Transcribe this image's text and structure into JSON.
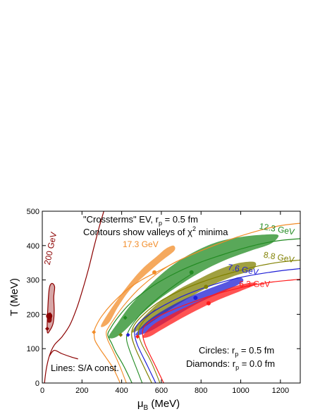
{
  "chart_data": {
    "type": "line",
    "xlabel": "μB (MeV)",
    "ylabel": "T (MeV)",
    "xlim": [
      0,
      1300
    ],
    "ylim": [
      0,
      500
    ],
    "xticks": [
      0,
      200,
      400,
      600,
      800,
      1000,
      1200
    ],
    "yticks": [
      0,
      100,
      200,
      300,
      400,
      500
    ],
    "annotations": {
      "line1": "\"Crossterms\" EV, r",
      "line1_sub": "p",
      "line1_tail": " = 0.5 fm",
      "line2": "Contours show valleys of χ",
      "line2_sup": "2",
      "line2_tail": " minima",
      "lines_note": "Lines: S/A const.",
      "circles_label": "Circles: r",
      "circles_sub": "p",
      "circles_tail": " = 0.5 fm",
      "diamonds_label": "Diamonds: r",
      "diamonds_sub": "p",
      "diamonds_tail": " = 0.0 fm"
    },
    "series": [
      {
        "name": "200 GeV",
        "color": "#8b0000",
        "line": [
          [
            10,
            -10
          ],
          [
            12,
            5
          ],
          [
            20,
            40
          ],
          [
            35,
            78
          ],
          [
            60,
            110
          ],
          [
            100,
            135
          ],
          [
            140,
            170
          ],
          [
            175,
            220
          ],
          [
            205,
            275
          ],
          [
            232,
            330
          ],
          [
            258,
            390
          ],
          [
            285,
            450
          ],
          [
            310,
            500
          ]
        ],
        "lowline": [
          [
            35,
            78
          ],
          [
            60,
            95
          ],
          [
            100,
            85
          ],
          [
            150,
            75
          ],
          [
            180,
            70
          ]
        ],
        "valley": [
          [
            25,
            150
          ],
          [
            28,
            220
          ],
          [
            35,
            275
          ],
          [
            48,
            290
          ],
          [
            62,
            280
          ],
          [
            58,
            250
          ],
          [
            60,
            210
          ],
          [
            55,
            175
          ],
          [
            40,
            155
          ]
        ],
        "inner": [
          [
            25,
            185
          ],
          [
            30,
            200
          ],
          [
            42,
            205
          ],
          [
            48,
            190
          ],
          [
            45,
            178
          ],
          [
            30,
            176
          ]
        ],
        "circle": [
          35,
          195
        ],
        "diamond": [
          25,
          158
        ]
      },
      {
        "name": "17.3 GeV",
        "color": "#f28c28",
        "line": [
          [
            400,
            -10
          ],
          [
            360,
            40
          ],
          [
            320,
            75
          ],
          [
            290,
            100
          ],
          [
            265,
            125
          ],
          [
            262,
            148
          ],
          [
            270,
            165
          ],
          [
            300,
            195
          ],
          [
            350,
            230
          ],
          [
            420,
            268
          ],
          [
            500,
            300
          ],
          [
            600,
            330
          ],
          [
            700,
            360
          ],
          [
            800,
            385
          ],
          [
            900,
            408
          ],
          [
            1000,
            428
          ],
          [
            1100,
            445
          ],
          [
            1200,
            458
          ],
          [
            1300,
            465
          ]
        ],
        "line_inner": [
          [
            430,
            -10
          ],
          [
            390,
            50
          ],
          [
            355,
            95
          ],
          [
            330,
            125
          ],
          [
            322,
            145
          ],
          [
            330,
            158
          ],
          [
            360,
            185
          ],
          [
            410,
            225
          ],
          [
            480,
            270
          ],
          [
            560,
            310
          ],
          [
            620,
            335
          ],
          [
            680,
            355
          ]
        ],
        "valley": [
          [
            295,
            165
          ],
          [
            340,
            210
          ],
          [
            420,
            275
          ],
          [
            500,
            330
          ],
          [
            580,
            370
          ],
          [
            620,
            390
          ],
          [
            660,
            400
          ],
          [
            665,
            385
          ],
          [
            600,
            355
          ],
          [
            520,
            315
          ],
          [
            440,
            270
          ],
          [
            380,
            220
          ],
          [
            335,
            175
          ]
        ],
        "circle": [
          565,
          322
        ],
        "diamond": [
          260,
          148
        ]
      },
      {
        "name": "12.3 GeV",
        "color": "#228b22",
        "line": [
          [
            460,
            -10
          ],
          [
            410,
            50
          ],
          [
            370,
            90
          ],
          [
            350,
            115
          ],
          [
            330,
            140
          ],
          [
            345,
            160
          ],
          [
            380,
            190
          ],
          [
            440,
            230
          ],
          [
            520,
            268
          ],
          [
            600,
            298
          ],
          [
            700,
            328
          ],
          [
            800,
            352
          ],
          [
            900,
            372
          ],
          [
            1000,
            390
          ],
          [
            1100,
            405
          ],
          [
            1200,
            415
          ],
          [
            1300,
            420
          ]
        ],
        "line_inner": [
          [
            510,
            -10
          ],
          [
            470,
            50
          ],
          [
            440,
            95
          ],
          [
            425,
            125
          ],
          [
            430,
            145
          ],
          [
            460,
            175
          ],
          [
            520,
            215
          ],
          [
            600,
            255
          ],
          [
            680,
            290
          ],
          [
            760,
            320
          ]
        ],
        "valley": [
          [
            335,
            135
          ],
          [
            380,
            175
          ],
          [
            450,
            230
          ],
          [
            550,
            290
          ],
          [
            650,
            340
          ],
          [
            760,
            380
          ],
          [
            880,
            410
          ],
          [
            1000,
            425
          ],
          [
            1120,
            432
          ],
          [
            1190,
            430
          ],
          [
            1150,
            405
          ],
          [
            1050,
            385
          ],
          [
            940,
            362
          ],
          [
            820,
            330
          ],
          [
            700,
            288
          ],
          [
            580,
            240
          ],
          [
            480,
            190
          ],
          [
            410,
            150
          ],
          [
            365,
            132
          ]
        ],
        "circle": [
          752,
          322
        ],
        "diamond": [
          418,
          190
        ]
      },
      {
        "name": "8.8 GeV",
        "color": "#808000",
        "line": [
          [
            560,
            -10
          ],
          [
            510,
            50
          ],
          [
            470,
            100
          ],
          [
            450,
            140
          ],
          [
            465,
            170
          ],
          [
            520,
            205
          ],
          [
            600,
            240
          ],
          [
            700,
            270
          ],
          [
            800,
            293
          ],
          [
            900,
            312
          ],
          [
            1000,
            328
          ],
          [
            1100,
            342
          ],
          [
            1200,
            352
          ],
          [
            1300,
            358
          ]
        ],
        "line_inner": [
          [
            600,
            -10
          ],
          [
            550,
            60
          ],
          [
            500,
            115
          ],
          [
            485,
            150
          ],
          [
            510,
            180
          ],
          [
            570,
            215
          ]
        ],
        "valley": [
          [
            450,
            148
          ],
          [
            500,
            185
          ],
          [
            580,
            230
          ],
          [
            680,
            270
          ],
          [
            780,
            300
          ],
          [
            880,
            328
          ],
          [
            980,
            348
          ],
          [
            1070,
            352
          ],
          [
            1060,
            330
          ],
          [
            960,
            310
          ],
          [
            860,
            286
          ],
          [
            760,
            255
          ],
          [
            660,
            220
          ],
          [
            570,
            185
          ],
          [
            500,
            158
          ]
        ],
        "circle": [
          825,
          280
        ],
        "diamond": [
          395,
          140
        ]
      },
      {
        "name": "7.6 GeV",
        "color": "#1f1fd6",
        "line": [
          [
            580,
            -10
          ],
          [
            530,
            50
          ],
          [
            480,
            110
          ],
          [
            465,
            145
          ],
          [
            480,
            170
          ],
          [
            540,
            200
          ],
          [
            620,
            228
          ],
          [
            720,
            256
          ],
          [
            820,
            278
          ],
          [
            920,
            296
          ],
          [
            1020,
            310
          ],
          [
            1120,
            320
          ],
          [
            1220,
            328
          ],
          [
            1300,
            333
          ]
        ],
        "valley": [
          [
            470,
            140
          ],
          [
            530,
            180
          ],
          [
            620,
            215
          ],
          [
            720,
            245
          ],
          [
            820,
            270
          ],
          [
            920,
            292
          ],
          [
            990,
            308
          ],
          [
            1010,
            295
          ],
          [
            930,
            270
          ],
          [
            830,
            245
          ],
          [
            730,
            215
          ],
          [
            630,
            180
          ],
          [
            540,
            150
          ]
        ],
        "circle": [
          772,
          248
        ],
        "diamond": [
          432,
          140
        ]
      },
      {
        "name": "6.3 GeV",
        "color": "#ff1a1a",
        "line": [
          [
            620,
            -10
          ],
          [
            570,
            50
          ],
          [
            520,
            110
          ],
          [
            505,
            145
          ],
          [
            520,
            168
          ],
          [
            580,
            192
          ],
          [
            660,
            214
          ],
          [
            760,
            236
          ],
          [
            860,
            256
          ],
          [
            960,
            272
          ],
          [
            1060,
            285
          ],
          [
            1160,
            294
          ],
          [
            1260,
            300
          ],
          [
            1300,
            302
          ]
        ],
        "valley": [
          [
            505,
            135
          ],
          [
            560,
            170
          ],
          [
            650,
            200
          ],
          [
            750,
            228
          ],
          [
            850,
            255
          ],
          [
            950,
            278
          ],
          [
            1050,
            292
          ],
          [
            1080,
            288
          ],
          [
            1000,
            268
          ],
          [
            900,
            245
          ],
          [
            800,
            218
          ],
          [
            700,
            188
          ],
          [
            600,
            155
          ],
          [
            540,
            135
          ]
        ],
        "circle": [
          838,
          232
        ],
        "diamond": [
          480,
          135
        ]
      }
    ],
    "series_labels": [
      {
        "name": "200 GeV",
        "x": 55,
        "y": 390,
        "rotate": -78
      },
      {
        "name": "17.3 GeV",
        "x": 495,
        "y": 395,
        "rotate": 0
      },
      {
        "name": "12.3 GeV",
        "x": 1180,
        "y": 440,
        "rotate": 10
      },
      {
        "name": "8.8 GeV",
        "x": 1190,
        "y": 358,
        "rotate": 10
      },
      {
        "name": "7.6 GeV",
        "x": 1010,
        "y": 322,
        "rotate": 10
      },
      {
        "name": "6.3 GeV",
        "x": 1070,
        "y": 280,
        "rotate": 0
      }
    ]
  }
}
